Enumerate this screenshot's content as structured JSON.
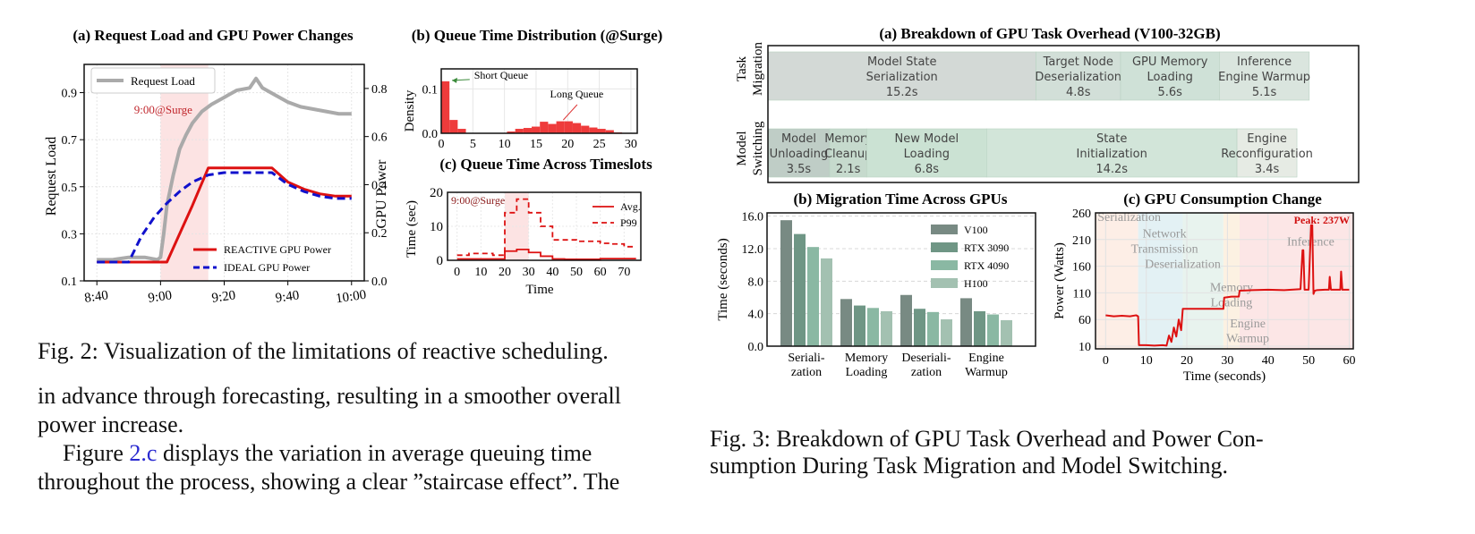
{
  "left_column": {
    "fig2": {
      "panel_a": {
        "title": "(a) Request Load and GPU Power Changes",
        "ylabel_left": "Request Load",
        "ylabel_right": "GPU Power",
        "annotation": "9:00@Surge",
        "legend": [
          "Request Load",
          "REACTIVE GPU Power",
          "IDEAL GPU Power"
        ]
      },
      "panel_b": {
        "title": "(b) Queue Time Distribution (@Surge)",
        "ylabel": "Density",
        "annotations": [
          "Short Queue",
          "Long Queue"
        ]
      },
      "panel_c": {
        "title": "(c) Queue Time Across Timeslots",
        "ylabel": "Time (sec)",
        "xlabel": "Time",
        "annotation": "9:00@Surge",
        "legend": [
          "Avg.",
          "P99"
        ]
      },
      "caption": "Fig. 2: Visualization of the limitations of reactive scheduling."
    },
    "paragraph": {
      "line1": "in advance through forecasting, resulting in a smoother overall",
      "line2": "power increase.",
      "line3_pre": "Figure ",
      "line3_link": "2.c",
      "line3_post": " displays the variation in average queuing time",
      "line4": "throughout the process, showing a clear ”staircase effect”. The"
    }
  },
  "right_column": {
    "fig3": {
      "panel_a": {
        "title": "(a) Breakdown of GPU Task Overhead (V100-32GB)",
        "rows": [
          {
            "label_line1": "Task",
            "label_line2": "Migration",
            "segments": [
              {
                "name": "Model State Serialization",
                "l1": "Model State",
                "l2": "Serialization",
                "value": "15.2s",
                "seconds": 15.2,
                "color": "#d3d9d6"
              },
              {
                "name": "Target Node Deserialization",
                "l1": "Target Node",
                "l2": "Deserialization",
                "value": "4.8s",
                "seconds": 4.8,
                "color": "#d2dfd8"
              },
              {
                "name": "GPU Memory Loading",
                "l1": "GPU Memory",
                "l2": "Loading",
                "value": "5.6s",
                "seconds": 5.6,
                "color": "#cfe1d7"
              },
              {
                "name": "Inference Engine Warmup",
                "l1": "Inference",
                "l2": "Engine Warmup",
                "value": "5.1s",
                "seconds": 5.1,
                "color": "#dae5de"
              }
            ]
          },
          {
            "label_line1": "Model",
            "label_line2": "Switching",
            "segments": [
              {
                "name": "Model Unloading",
                "l1": "Model",
                "l2": "Unloading",
                "value": "3.5s",
                "seconds": 3.5,
                "color": "#bfcdc6"
              },
              {
                "name": "Memory Cleanup",
                "l1": "Memory",
                "l2": "Cleanup",
                "value": "2.1s",
                "seconds": 2.1,
                "color": "#c6dacd"
              },
              {
                "name": "New Model Loading",
                "l1": "New Model",
                "l2": "Loading",
                "value": "6.8s",
                "seconds": 6.8,
                "color": "#cbe2d3"
              },
              {
                "name": "State Initialization",
                "l1": "State",
                "l2": "Initialization",
                "value": "14.2s",
                "seconds": 14.2,
                "color": "#d2e5d9"
              },
              {
                "name": "Engine Reconfiguration",
                "l1": "Engine",
                "l2": "Reconfiguration",
                "value": "3.4s",
                "seconds": 3.4,
                "color": "#e6ebe4"
              }
            ]
          }
        ]
      },
      "panel_b": {
        "title": "(b) Migration Time Across GPUs"
      },
      "panel_c": {
        "title": "(c) GPU Consumption Change",
        "peak_label": "Peak: 237W",
        "phase_labels": [
          "Serialization",
          "Network",
          "Transmission",
          "Deserialization",
          "Memory",
          "Loading",
          "Engine",
          "Warmup",
          "Inference"
        ]
      },
      "caption_line1": "Fig. 3: Breakdown of GPU Task Overhead and Power Con-",
      "caption_line2": "sumption During Task Migration and Model Switching."
    }
  },
  "chart_data": [
    {
      "id": "fig2a",
      "type": "line",
      "title": "(a) Request Load and GPU Power Changes",
      "xlabel": "",
      "ylabel": "Request Load",
      "y2label": "GPU Power",
      "x_ticks": [
        "8:40",
        "9:00",
        "9:20",
        "9:40",
        "10:00"
      ],
      "x_minutes": [
        0,
        20,
        40,
        60,
        80
      ],
      "xlim": [
        -4,
        84
      ],
      "ylim": [
        0.1,
        1.02
      ],
      "y_ticks": [
        0.1,
        0.3,
        0.5,
        0.7,
        0.9
      ],
      "y2lim": [
        0.0,
        0.9
      ],
      "y2_ticks": [
        0.0,
        0.2,
        0.4,
        0.6,
        0.8
      ],
      "highlight_x": [
        20,
        35
      ],
      "highlight_label": "9:00@Surge",
      "grid": true,
      "series": [
        {
          "name": "Request Load",
          "axis": "left",
          "color": "#aaaaaa",
          "style": "solid",
          "x": [
            0,
            5,
            10,
            15,
            19,
            20,
            21,
            22,
            24,
            26,
            28,
            30,
            33,
            36,
            40,
            44,
            48,
            50,
            52,
            56,
            60,
            64,
            68,
            72,
            76,
            80
          ],
          "y": [
            0.19,
            0.19,
            0.2,
            0.2,
            0.19,
            0.2,
            0.3,
            0.42,
            0.55,
            0.66,
            0.72,
            0.77,
            0.82,
            0.85,
            0.88,
            0.91,
            0.92,
            0.96,
            0.92,
            0.89,
            0.86,
            0.84,
            0.83,
            0.82,
            0.81,
            0.81
          ]
        },
        {
          "name": "REACTIVE GPU Power",
          "axis": "left",
          "color": "#dd1111",
          "style": "solid",
          "x": [
            0,
            22,
            30,
            35,
            40,
            50,
            55,
            60,
            65,
            70,
            75,
            80
          ],
          "y": [
            0.18,
            0.18,
            0.42,
            0.58,
            0.58,
            0.58,
            0.58,
            0.52,
            0.49,
            0.47,
            0.46,
            0.46
          ]
        },
        {
          "name": "IDEAL GPU Power",
          "axis": "left",
          "color": "#1111cc",
          "style": "dashed",
          "x": [
            0,
            10,
            14,
            18,
            22,
            26,
            30,
            35,
            40,
            45,
            50,
            55,
            60,
            65,
            70,
            75,
            80
          ],
          "y": [
            0.18,
            0.18,
            0.29,
            0.37,
            0.43,
            0.48,
            0.52,
            0.55,
            0.56,
            0.56,
            0.56,
            0.56,
            0.51,
            0.48,
            0.46,
            0.45,
            0.45
          ]
        }
      ],
      "annotations": [
        "9:00@Surge"
      ],
      "legend": [
        "Request Load",
        "REACTIVE GPU Power",
        "IDEAL GPU Power"
      ]
    },
    {
      "id": "fig2b",
      "type": "bar",
      "title": "(b) Queue Time Distribution (@Surge)",
      "ylabel": "Density",
      "xlabel": "",
      "xlim": [
        0,
        31
      ],
      "ylim": [
        0,
        0.145
      ],
      "x_ticks": [
        0,
        5,
        10,
        15,
        20,
        25,
        30
      ],
      "y_ticks": [
        0.0,
        0.1
      ],
      "bin_width": 1.3,
      "bin_starts": [
        0,
        1.3,
        2.6,
        3.9,
        5.2,
        6.5,
        7.8,
        9.1,
        10.4,
        11.7,
        13.0,
        14.3,
        15.6,
        16.9,
        18.2,
        19.5,
        20.8,
        22.1,
        23.4,
        24.7,
        26.0,
        27.3
      ],
      "values": [
        0.117,
        0.03,
        0.01,
        0.001,
        0.0,
        0.0,
        0.0,
        0.001,
        0.004,
        0.01,
        0.012,
        0.015,
        0.026,
        0.021,
        0.027,
        0.027,
        0.023,
        0.017,
        0.013,
        0.01,
        0.007,
        0.002
      ],
      "color": "#ee3b3b",
      "annotations": [
        "Short Queue",
        "Long Queue"
      ],
      "grid": true
    },
    {
      "id": "fig2c",
      "type": "line",
      "title": "(c) Queue Time Across Timeslots",
      "xlabel": "Time",
      "ylabel": "Time (sec)",
      "xlim": [
        -4,
        77
      ],
      "ylim": [
        0,
        20
      ],
      "x_ticks": [
        0,
        10,
        20,
        30,
        40,
        50,
        60,
        70
      ],
      "y_ticks": [
        0,
        10,
        20
      ],
      "highlight_x": [
        20,
        30
      ],
      "highlight_label": "9:00@Surge",
      "grid": true,
      "series": [
        {
          "name": "Avg.",
          "style": "solid-step",
          "color": "#dd1111",
          "x": [
            0,
            5,
            10,
            15,
            20,
            25,
            30,
            35,
            40,
            45,
            50,
            55,
            60,
            65,
            70,
            75
          ],
          "y": [
            0.4,
            0.4,
            0.4,
            0.4,
            2.7,
            3.2,
            2.3,
            1.2,
            0.4,
            0.3,
            0.3,
            0.3,
            0.5,
            0.5,
            0.5,
            0.5
          ]
        },
        {
          "name": "P99",
          "style": "dashed-step",
          "color": "#dd1111",
          "x": [
            0,
            5,
            10,
            15,
            20,
            25,
            30,
            35,
            40,
            45,
            50,
            55,
            60,
            65,
            70,
            75
          ],
          "y": [
            1.5,
            2.0,
            2.0,
            1.5,
            14.0,
            18.0,
            14.0,
            10.0,
            6.0,
            6.0,
            5.6,
            5.6,
            5.0,
            4.8,
            4.0,
            4.0
          ]
        }
      ],
      "legend": [
        "Avg.",
        "P99"
      ]
    },
    {
      "id": "fig3a",
      "type": "bar",
      "title": "(a) Breakdown of GPU Task Overhead (V100-32GB)",
      "orientation": "horizontal-stacked",
      "categories": [
        "Task Migration",
        "Model Switching"
      ],
      "series": [
        {
          "category": "Task Migration",
          "names": [
            "Model State Serialization",
            "Target Node Deserialization",
            "GPU Memory Loading",
            "Inference Engine Warmup"
          ],
          "values": [
            15.2,
            4.8,
            5.6,
            5.1
          ]
        },
        {
          "category": "Model Switching",
          "names": [
            "Model Unloading",
            "Memory Cleanup",
            "New Model Loading",
            "State Initialization",
            "Engine Reconfiguration"
          ],
          "values": [
            3.5,
            2.1,
            6.8,
            14.2,
            3.4
          ]
        }
      ],
      "xlim": [
        0,
        33.5
      ]
    },
    {
      "id": "fig3b",
      "type": "bar",
      "title": "(b) Migration Time Across GPUs",
      "xlabel": "",
      "ylabel": "Time (seconds)",
      "categories": [
        "Seriali-\nzation",
        "Memory\nLoading",
        "Deseriali-\nzation",
        "Engine\nWarmup"
      ],
      "category_lines": [
        [
          "Seriali-",
          "zation"
        ],
        [
          "Memory",
          "Loading"
        ],
        [
          "Deseriali-",
          "zation"
        ],
        [
          "Engine",
          "Warmup"
        ]
      ],
      "ylim": [
        0,
        16.4
      ],
      "y_ticks": [
        0.0,
        4.0,
        8.0,
        12.0,
        16.0
      ],
      "y_tick_labels": [
        "0.0",
        "4.0",
        "8.0",
        "12.0",
        "16.0"
      ],
      "grid": true,
      "legend_position": "top-right",
      "series": [
        {
          "name": "V100",
          "color": "#788a83",
          "values": [
            15.5,
            5.8,
            6.3,
            5.9
          ]
        },
        {
          "name": "RTX 3090",
          "color": "#6f9685",
          "values": [
            13.8,
            5.0,
            4.6,
            4.3
          ]
        },
        {
          "name": "RTX 4090",
          "color": "#8ab8a3",
          "values": [
            12.2,
            4.7,
            4.2,
            3.9
          ]
        },
        {
          "name": "H100",
          "color": "#a3c1b1",
          "values": [
            10.8,
            4.3,
            3.3,
            3.2
          ]
        }
      ]
    },
    {
      "id": "fig3c",
      "type": "line",
      "title": "(c) GPU Consumption Change",
      "xlabel": "Time (seconds)",
      "ylabel": "Power (Watts)",
      "xlim": [
        -2.5,
        61
      ],
      "ylim": [
        5,
        260
      ],
      "x_ticks": [
        0,
        10,
        20,
        30,
        40,
        50,
        60
      ],
      "y_ticks": [
        10,
        60,
        110,
        160,
        210,
        260
      ],
      "grid": true,
      "phases": [
        {
          "name": "Serialization",
          "x": [
            -2.5,
            8
          ],
          "color": "#fdeee6"
        },
        {
          "name": "Network Transmission / Deserialization",
          "x": [
            8,
            19
          ],
          "color": "#e3f1f4"
        },
        {
          "name": "Memory Loading",
          "x": [
            19,
            29
          ],
          "color": "#e8f3ee"
        },
        {
          "name": "Engine Warmup",
          "x": [
            29,
            33
          ],
          "color": "#fcf1e2"
        },
        {
          "name": "Inference",
          "x": [
            33,
            61
          ],
          "color": "#fce6e6"
        }
      ],
      "series": [
        {
          "name": "Power",
          "color": "#dd1111",
          "x": [
            0,
            2,
            4,
            6,
            7.5,
            8,
            8.2,
            10,
            12,
            14,
            15,
            15.6,
            16.2,
            16.8,
            17.4,
            18,
            18.6,
            19,
            19.2,
            22,
            25,
            28,
            29,
            29.2,
            31,
            32.8,
            33,
            36,
            40,
            44,
            48,
            48.5,
            48.7,
            49,
            49.2,
            50,
            50.6,
            50.9,
            51.2,
            51.5,
            52,
            54,
            55,
            55.2,
            55.5,
            56,
            57.8,
            58,
            58.3,
            58.6,
            60
          ],
          "y": [
            68,
            66,
            67,
            66,
            68,
            66,
            12,
            12,
            11,
            12,
            11,
            30,
            18,
            45,
            28,
            60,
            40,
            80,
            80,
            80,
            80,
            80,
            80,
            101,
            103,
            103,
            114,
            115,
            116,
            115,
            117,
            190,
            190,
            116,
            116,
            116,
            237,
            237,
            108,
            114,
            115,
            116,
            116,
            140,
            116,
            116,
            116,
            150,
            116,
            116,
            116
          ]
        }
      ],
      "annotations": [
        "Peak: 237W",
        "Serialization",
        "Network Transmission",
        "Deserialization",
        "Memory Loading",
        "Engine Warmup",
        "Inference"
      ]
    }
  ]
}
